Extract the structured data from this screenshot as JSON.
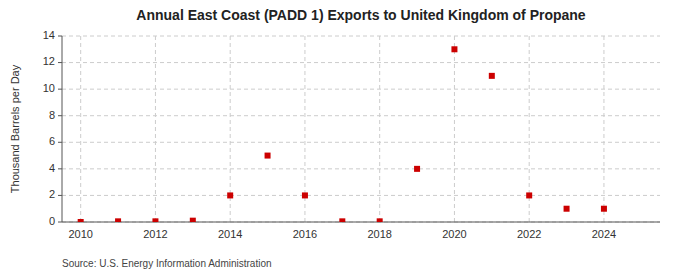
{
  "chart_data": {
    "type": "scatter",
    "title": "Annual East Coast (PADD 1) Exports to United Kingdom of Propane",
    "y_label": "Thousand Barrels per Day",
    "annotations": [
      "Source: U.S. Energy Information Administration"
    ],
    "x": [
      2010,
      2011,
      2012,
      2013,
      2014,
      2015,
      2016,
      2017,
      2018,
      2019,
      2020,
      2021,
      2022,
      2023,
      2024
    ],
    "values": [
      0,
      0.05,
      0.05,
      0.1,
      2,
      5,
      2,
      0.05,
      0.05,
      4,
      13,
      11,
      2,
      1,
      1
    ],
    "color": "#cc0000",
    "marker": "square",
    "xlim": [
      2009.5,
      2025.5
    ],
    "ylim": [
      0,
      14
    ],
    "xticks": [
      2010,
      2012,
      2014,
      2016,
      2018,
      2020,
      2022,
      2024
    ],
    "yticks": [
      0,
      2,
      4,
      6,
      8,
      10,
      12,
      14
    ],
    "grid": true
  }
}
